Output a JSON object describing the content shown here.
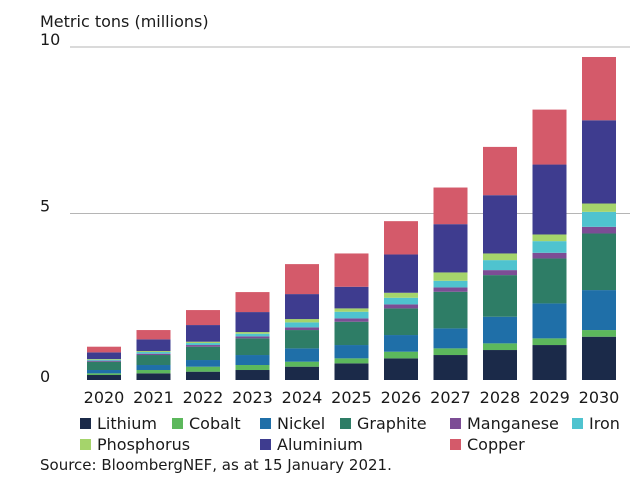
{
  "chart_data": {
    "type": "bar",
    "stacked": true,
    "title": "",
    "ylabel": "Metric tons (millions)",
    "xlabel": "",
    "ylim": [
      0,
      10
    ],
    "yticks": [
      0,
      5,
      10
    ],
    "grid": "horizontal",
    "legend_position": "bottom",
    "categories": [
      "2020",
      "2021",
      "2022",
      "2023",
      "2024",
      "2025",
      "2026",
      "2027",
      "2028",
      "2029",
      "2030"
    ],
    "series": [
      {
        "name": "Lithium",
        "color": "#1b2a49",
        "values": [
          0.15,
          0.2,
          0.25,
          0.3,
          0.4,
          0.5,
          0.65,
          0.75,
          0.9,
          1.05,
          1.3
        ]
      },
      {
        "name": "Cobalt",
        "color": "#5cb85c",
        "values": [
          0.05,
          0.1,
          0.15,
          0.15,
          0.15,
          0.15,
          0.2,
          0.2,
          0.2,
          0.2,
          0.2
        ]
      },
      {
        "name": "Nickel",
        "color": "#1f6fa8",
        "values": [
          0.1,
          0.15,
          0.2,
          0.3,
          0.4,
          0.4,
          0.5,
          0.6,
          0.8,
          1.05,
          1.2
        ]
      },
      {
        "name": "Graphite",
        "color": "#2e7d66",
        "values": [
          0.25,
          0.3,
          0.4,
          0.5,
          0.55,
          0.7,
          0.8,
          1.1,
          1.25,
          1.35,
          1.7
        ]
      },
      {
        "name": "Manganese",
        "color": "#7c4d95",
        "values": [
          0.03,
          0.04,
          0.05,
          0.06,
          0.08,
          0.1,
          0.12,
          0.13,
          0.15,
          0.17,
          0.2
        ]
      },
      {
        "name": "Iron",
        "color": "#4fc3cf",
        "values": [
          0.03,
          0.05,
          0.06,
          0.08,
          0.15,
          0.2,
          0.2,
          0.2,
          0.3,
          0.35,
          0.45
        ]
      },
      {
        "name": "Phosphorus",
        "color": "#a5d46b",
        "values": [
          0.02,
          0.03,
          0.04,
          0.05,
          0.1,
          0.1,
          0.15,
          0.25,
          0.2,
          0.2,
          0.25
        ]
      },
      {
        "name": "Aluminium",
        "color": "#3e3c8f",
        "values": [
          0.2,
          0.35,
          0.5,
          0.6,
          0.75,
          0.65,
          1.15,
          1.45,
          1.75,
          2.1,
          2.5
        ]
      },
      {
        "name": "Copper",
        "color": "#d45a6a",
        "values": [
          0.17,
          0.28,
          0.45,
          0.6,
          0.9,
          1.0,
          1.0,
          1.1,
          1.45,
          1.65,
          1.9
        ]
      }
    ]
  },
  "source": "Source: BloombergNEF, as at 15 January 2021."
}
